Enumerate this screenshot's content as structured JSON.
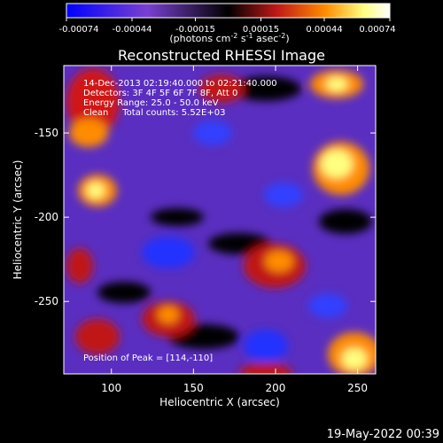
{
  "chart_data": {
    "type": "heatmap",
    "title": "Reconstructed RHESSI Image",
    "xlabel": "Heliocentric X (arcsec)",
    "ylabel": "Heliocentric Y (arcsec)",
    "x_ticks": [
      "100",
      "150",
      "200",
      "250"
    ],
    "y_ticks": [
      "-150",
      "-200",
      "-250"
    ],
    "x_tick_values": [
      100,
      150,
      200,
      250
    ],
    "y_tick_values": [
      -150,
      -200,
      -250
    ],
    "xlim": [
      71,
      261
    ],
    "ylim": [
      -293,
      -110
    ],
    "colorbar": {
      "tick_labels": [
        "-0.00074",
        "-0.00044",
        "-0.00015",
        "0.00015",
        "0.00044",
        "0.00074"
      ],
      "tick_values": [
        -0.00074,
        -0.00044,
        -0.00015,
        0.00015,
        0.00044,
        0.00074
      ],
      "range": [
        -0.00074,
        0.00074
      ],
      "unit_prefix": "(photons cm",
      "unit_exp1": "-2",
      "unit_mid": " s",
      "unit_exp2": "-1",
      "unit_mid2": " asec",
      "unit_exp3": "-2",
      "unit_suffix": ")",
      "colors": [
        "#0000ff",
        "#7a3fd0",
        "#000000",
        "#c01818",
        "#ff8c00",
        "#ffff80",
        "#ffffff"
      ]
    },
    "annotations": [
      "14-Dec-2013 02:19:40.000 to 02:21:40.000",
      "Detectors: 3F 4F 5F 6F 7F 8F, Att 0",
      "Energy Range: 25.0 - 50.0 keV",
      "Clean     Total counts: 5.52E+03"
    ],
    "peak_label": "Position of Peak = [114,-110]",
    "grid": false
  },
  "footer": {
    "timestamp": "19-May-2022 00:39"
  }
}
